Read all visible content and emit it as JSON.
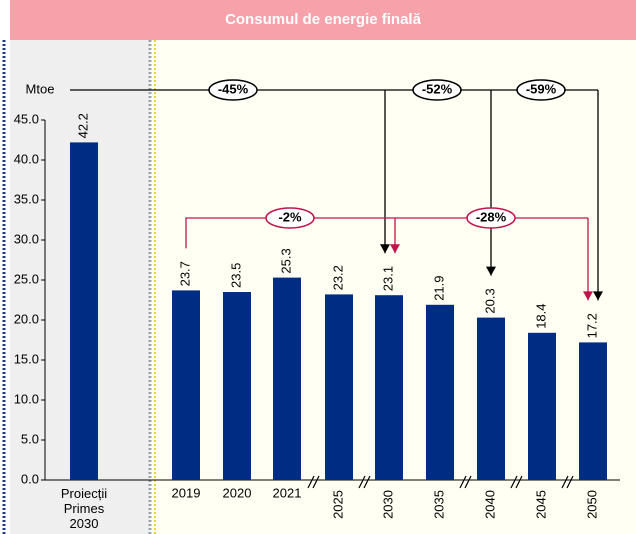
{
  "chart_data": {
    "type": "bar",
    "title": "Consumul de energie finală",
    "y_label": "Mtoe",
    "categories": [
      "Proiecții Primes 2030",
      "2019",
      "2020",
      "2021",
      "2025",
      "2030",
      "2035",
      "2040",
      "2045",
      "2050"
    ],
    "values": [
      42.2,
      23.7,
      23.5,
      25.3,
      23.2,
      23.1,
      21.9,
      20.3,
      18.4,
      17.2
    ],
    "color": "#002d84",
    "ylim": [
      0,
      45
    ],
    "yticks": [
      {
        "value": 0,
        "label": "0.0"
      },
      {
        "value": 5,
        "label": "5.0"
      },
      {
        "value": 10,
        "label": "10.0"
      },
      {
        "value": 15,
        "label": "15.0"
      },
      {
        "value": 20,
        "label": "20.0"
      },
      {
        "value": 25,
        "label": "25.0"
      },
      {
        "value": 30,
        "label": "30.0"
      },
      {
        "value": 35,
        "label": "35.0"
      },
      {
        "value": 40,
        "label": "40.0"
      },
      {
        "value": 45,
        "label": "45.0"
      }
    ],
    "annotations": [
      {
        "label": "-45%",
        "color": "#000000"
      },
      {
        "label": "-52%",
        "color": "#000000"
      },
      {
        "label": "-59%",
        "color": "#000000"
      },
      {
        "label": "-2%",
        "color": "#c0144c"
      },
      {
        "label": "-28%",
        "color": "#c0144c"
      }
    ]
  }
}
